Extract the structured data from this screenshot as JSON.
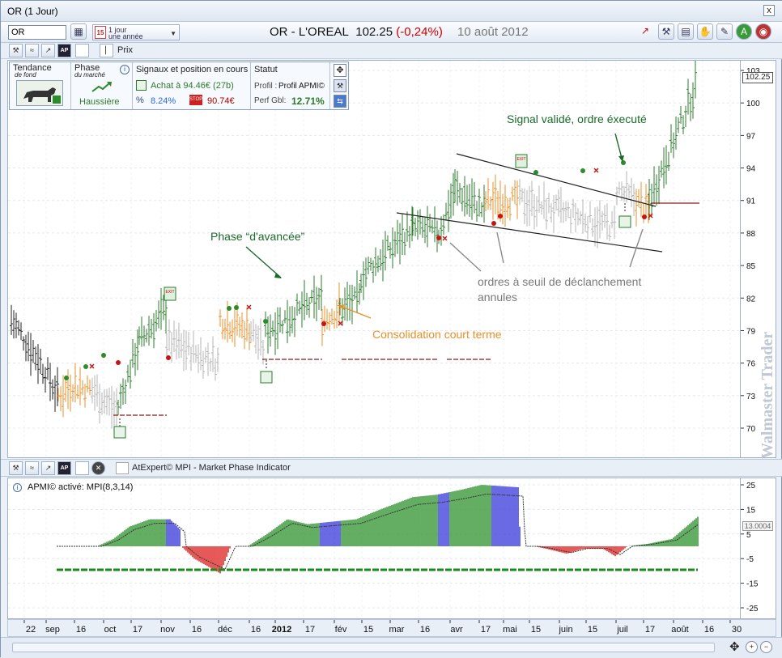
{
  "window": {
    "title": "OR (1 Jour)",
    "close_label": "x"
  },
  "toolbar": {
    "symbol_value": "OR",
    "period_day": "15",
    "period_line1": "1 jour",
    "period_line2": "une année",
    "title_name": "OR - L'OREAL",
    "title_price": "102.25",
    "title_change": "(-0,24%)",
    "title_date": "10 août 2012"
  },
  "subtoolbar": {
    "prix_label": "Prix"
  },
  "panel": {
    "tendance_label": "Tendance",
    "tendance_sub": "de fond",
    "phase_label": "Phase",
    "phase_sub": "du marché",
    "phase_value": "Haussière",
    "signals_label": "Signaux et position en cours",
    "achat": "Achat à 94.46€ (27b)",
    "pct": "8.24%",
    "stop": "90.74€",
    "statut_label": "Statut",
    "profil_label": "Profil :",
    "profil_value": "Profil APMI©",
    "perf_label": "Perf Gbl:",
    "perf_value": "12.71%"
  },
  "annotations": {
    "signal": "Signal validé, ordre éxecuté",
    "phase": "Phase “d'avancée”",
    "ordres1": "ordres à seuil de déclanchement",
    "ordres2": "annules",
    "consolidation": "Consolidation court terme"
  },
  "exit_label": "EXIT",
  "price_axis": {
    "ticks": [
      "103",
      "100",
      "97",
      "94",
      "91",
      "88",
      "85",
      "82",
      "79",
      "76",
      "73",
      "70"
    ],
    "current": "102.25"
  },
  "indicator": {
    "bar_label": "AtExpert© MPI - Market Phase Indicator",
    "title": "APMI© activé: MPI(8,3,14)",
    "ticks": [
      "25",
      "15",
      "5",
      "-5",
      "-15",
      "-25"
    ],
    "tick_values": [
      25,
      15,
      5,
      -5,
      -15,
      -25
    ],
    "current": "13.0004"
  },
  "x_axis": {
    "labels": [
      "22",
      "sep",
      "16",
      "oct",
      "17",
      "nov",
      "16",
      "déc",
      "16",
      "2012",
      "17",
      "fév",
      "15",
      "mar",
      "16",
      "avr",
      "17",
      "mai",
      "15",
      "juin",
      "15",
      "juil",
      "17",
      "août",
      "16",
      "30"
    ]
  },
  "watermark": "Walmaster Trader",
  "colors": {
    "bull": "#2e7d2e",
    "consolidation": "#e8902a",
    "neutral": "#b5b5b5",
    "bear": "#222222",
    "ind_green": "#3c9a3c",
    "ind_blue": "#4444dd",
    "ind_red": "#e03030",
    "annotation_green": "#1a6a2a",
    "annotation_orange": "#e8902a",
    "annotation_gray": "#7a7a7a"
  }
}
